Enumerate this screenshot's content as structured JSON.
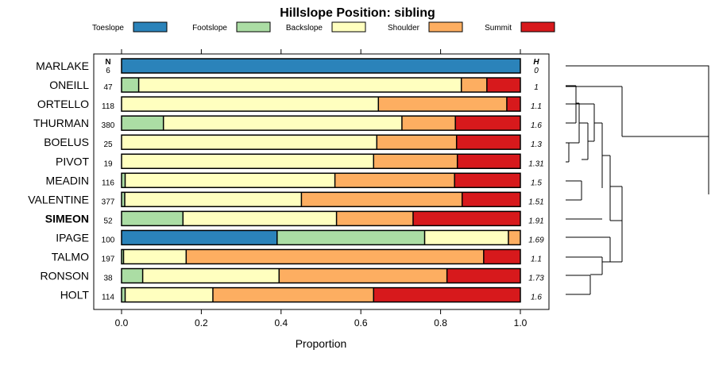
{
  "chart_data": {
    "type": "bar",
    "stacked": true,
    "orientation": "horizontal",
    "title": "Hillslope Position: sibling",
    "xlabel": "Proportion",
    "xlim": [
      0,
      1
    ],
    "xticks": [
      "0.0",
      "0.2",
      "0.4",
      "0.6",
      "0.8",
      "1.0"
    ],
    "n_header": "N",
    "h_header": "H",
    "legend_position": "top",
    "series": [
      {
        "name": "Toeslope",
        "color": "#2b83ba"
      },
      {
        "name": "Footslope",
        "color": "#abdda4"
      },
      {
        "name": "Backslope",
        "color": "#ffffbf"
      },
      {
        "name": "Shoulder",
        "color": "#fdae61"
      },
      {
        "name": "Summit",
        "color": "#d7191c"
      }
    ],
    "rows": [
      {
        "label": "MARLAKE",
        "n": "6",
        "h": "0",
        "bold": false,
        "values": [
          1.0,
          0,
          0,
          0,
          0
        ]
      },
      {
        "label": "ONEILL",
        "n": "47",
        "h": "1",
        "bold": false,
        "values": [
          0,
          0.043,
          0.809,
          0.064,
          0.084
        ]
      },
      {
        "label": "ORTELLO",
        "n": "118",
        "h": "1.1",
        "bold": false,
        "values": [
          0,
          0,
          0.644,
          0.322,
          0.034
        ]
      },
      {
        "label": "THURMAN",
        "n": "380",
        "h": "1.6",
        "bold": false,
        "values": [
          0,
          0.105,
          0.598,
          0.134,
          0.163
        ]
      },
      {
        "label": "BOELUS",
        "n": "25",
        "h": "1.3",
        "bold": false,
        "values": [
          0,
          0,
          0.64,
          0.2,
          0.16
        ]
      },
      {
        "label": "PIVOT",
        "n": "19",
        "h": "1.31",
        "bold": false,
        "values": [
          0,
          0,
          0.632,
          0.21,
          0.158
        ]
      },
      {
        "label": "MEADIN",
        "n": "116",
        "h": "1.5",
        "bold": false,
        "values": [
          0,
          0.009,
          0.526,
          0.3,
          0.165
        ]
      },
      {
        "label": "VALENTINE",
        "n": "377",
        "h": "1.51",
        "bold": false,
        "values": [
          0,
          0.008,
          0.443,
          0.403,
          0.146
        ]
      },
      {
        "label": "SIMEON",
        "n": "52",
        "h": "1.91",
        "bold": true,
        "values": [
          0,
          0.154,
          0.385,
          0.192,
          0.269
        ]
      },
      {
        "label": "IPAGE",
        "n": "100",
        "h": "1.69",
        "bold": false,
        "values": [
          0.39,
          0.37,
          0.21,
          0.03,
          0
        ]
      },
      {
        "label": "TALMO",
        "n": "197",
        "h": "1.1",
        "bold": false,
        "values": [
          0,
          0.005,
          0.157,
          0.746,
          0.092
        ]
      },
      {
        "label": "RONSON",
        "n": "38",
        "h": "1.73",
        "bold": false,
        "values": [
          0,
          0.053,
          0.342,
          0.421,
          0.184
        ]
      },
      {
        "label": "HOLT",
        "n": "114",
        "h": "1.6",
        "bold": false,
        "values": [
          0,
          0.009,
          0.22,
          0.403,
          0.368
        ]
      }
    ]
  }
}
